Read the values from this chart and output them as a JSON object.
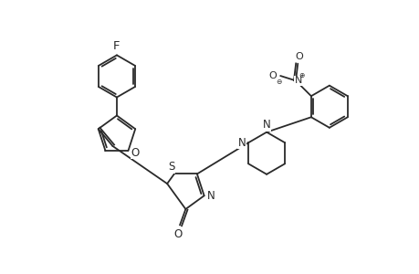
{
  "background": "#ffffff",
  "line_color": "#2a2a2a",
  "lw": 1.3,
  "dbo": 0.055,
  "fs": 8.5,
  "fig_width": 4.6,
  "fig_height": 3.0,
  "dpi": 100,
  "xlim": [
    0.0,
    9.2
  ],
  "ylim": [
    0.5,
    7.2
  ]
}
